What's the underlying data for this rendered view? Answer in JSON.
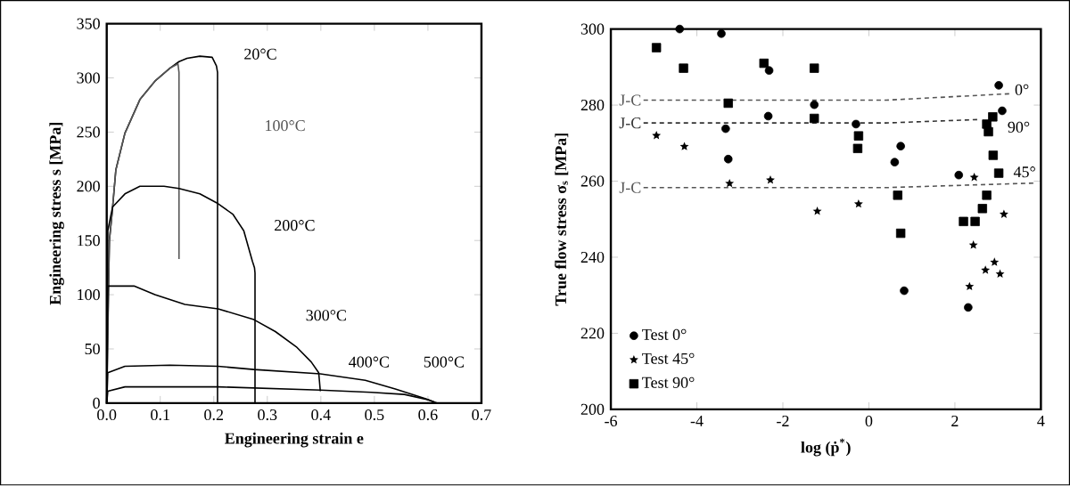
{
  "chart_data": [
    {
      "type": "line",
      "xlabel": "Engineering strain e",
      "ylabel": "Engineering stress s [MPa]",
      "xlim": [
        0,
        0.7
      ],
      "ylim": [
        0,
        350
      ],
      "xticks": [
        {
          "value": 0,
          "label": "0.0"
        },
        0.1,
        0.2,
        0.3,
        0.4,
        0.5,
        0.6,
        0.7
      ],
      "yticks": [
        0,
        50,
        100,
        150,
        200,
        250,
        300,
        350
      ],
      "series": [
        {
          "name": "20°C",
          "color": "#000000",
          "x": [
            0,
            0.003,
            0.005,
            0.01,
            0.017,
            0.034,
            0.062,
            0.09,
            0.118,
            0.135,
            0.15,
            0.174,
            0.197,
            0.205,
            0.207,
            0.207
          ],
          "values": [
            0,
            100,
            150,
            175,
            215,
            249,
            280,
            297,
            309,
            315,
            318,
            320,
            319,
            311,
            305,
            0
          ]
        },
        {
          "name": "100°C",
          "color": "#555555",
          "x": [
            0,
            0.005,
            0.01,
            0.017,
            0.034,
            0.062,
            0.09,
            0.118,
            0.133,
            0.135,
            0.135
          ],
          "values": [
            0,
            150,
            175,
            215,
            249,
            280,
            297,
            309,
            313,
            305,
            133
          ]
        },
        {
          "name": "200°C",
          "color": "#000000",
          "x": [
            0,
            0.002,
            0.011,
            0.034,
            0.062,
            0.107,
            0.135,
            0.174,
            0.208,
            0.236,
            0.256,
            0.272,
            0.276,
            0.277,
            0.277
          ],
          "values": [
            0,
            159,
            181,
            193,
            200,
            200,
            198,
            193,
            184,
            174,
            159,
            131,
            125,
            120,
            0
          ]
        },
        {
          "name": "300°C",
          "color": "#000000",
          "x": [
            0,
            0.002,
            0.006,
            0.051,
            0.09,
            0.146,
            0.208,
            0.275,
            0.315,
            0.354,
            0.382,
            0.396,
            0.399
          ],
          "values": [
            0,
            108,
            108,
            108,
            100,
            91,
            87,
            77,
            66,
            52,
            38,
            28,
            11
          ]
        },
        {
          "name": "400°C",
          "color": "#000000",
          "x": [
            0,
            0.002,
            0.034,
            0.118,
            0.208,
            0.275,
            0.399,
            0.483,
            0.539,
            0.596,
            0.612
          ],
          "values": [
            0,
            28,
            34,
            35,
            34,
            31,
            27,
            21,
            13,
            4,
            1
          ]
        },
        {
          "name": "500°C",
          "color": "#000000",
          "x": [
            0,
            0.002,
            0.034,
            0.208,
            0.399,
            0.494,
            0.556,
            0.601,
            0.618
          ],
          "values": [
            0,
            11,
            15,
            15,
            12,
            10,
            8,
            3,
            0
          ]
        }
      ]
    },
    {
      "type": "scatter",
      "xlabel": "log (ṗ$^{*}$)",
      "ylabel": "True flow stress σ$_{s}$ [MPa]",
      "xlim": [
        -6,
        4
      ],
      "ylim": [
        200,
        300
      ],
      "xticks": [
        -6,
        -4,
        -2,
        0,
        2,
        4
      ],
      "yticks": [
        200,
        220,
        240,
        260,
        280,
        300
      ],
      "legend": "bottom left",
      "series": [
        {
          "name": "Test 0°",
          "color": "#000000",
          "marker": "circle",
          "x": [
            -4.4,
            -3.43,
            -2.32,
            3.02,
            -1.27,
            3.1,
            -2.34,
            -0.3,
            -3.33,
            -3.27,
            0.74,
            0.6,
            2.09,
            0.82,
            2.31
          ],
          "values": [
            300,
            298.8,
            289.1,
            285.2,
            280.1,
            278.5,
            277.1,
            275,
            273.8,
            265.8,
            269.2,
            265,
            261.6,
            231.2,
            226.8
          ]
        },
        {
          "name": "Test 45°",
          "color": "#000000",
          "marker": "star",
          "x": [
            -4.94,
            -4.29,
            2.45,
            -3.24,
            -2.29,
            -0.24,
            -1.2,
            3.14,
            2.43,
            2.92,
            2.71,
            3.05,
            2.34
          ],
          "values": [
            272,
            269.1,
            261,
            259.4,
            260.3,
            254,
            252.1,
            251.3,
            243.2,
            238.7,
            236.6,
            235.6,
            232.3
          ]
        },
        {
          "name": "Test 90°",
          "color": "#000000",
          "marker": "square",
          "x": [
            -4.94,
            -4.31,
            -2.44,
            -1.27,
            -3.27,
            -1.27,
            -0.24,
            -0.26,
            2.88,
            2.74,
            2.78,
            2.89,
            3.02,
            2.74,
            2.64,
            0.67,
            2.2,
            2.47,
            0.74
          ],
          "values": [
            295.1,
            289.7,
            291,
            289.7,
            280.5,
            276.5,
            271.9,
            268.6,
            276.9,
            275,
            273,
            266.8,
            262.1,
            256.3,
            252.8,
            256.3,
            249.4,
            249.4,
            246.3
          ]
        },
        {
          "name": "J-C",
          "type": "line",
          "color": "#555555",
          "marker": "none",
          "line_style": "dashed",
          "x": [
            -5.24,
            0.4,
            3.3
          ],
          "values": [
            281.3,
            281.3,
            283
          ]
        },
        {
          "name": "J-C",
          "type": "line",
          "color": "#333333",
          "marker": "none",
          "line_style": "dashed",
          "x": [
            -5.24,
            0.4,
            2.55
          ],
          "values": [
            275.3,
            275.3,
            276.2
          ]
        },
        {
          "name": "J-C",
          "type": "line",
          "color": "#555555",
          "marker": "none",
          "line_style": "dashed",
          "x": [
            -5.24,
            0.4,
            3.85
          ],
          "values": [
            258.3,
            258.3,
            259.5
          ]
        }
      ],
      "annotations": [
        "0°",
        "90°",
        "45°"
      ]
    }
  ]
}
